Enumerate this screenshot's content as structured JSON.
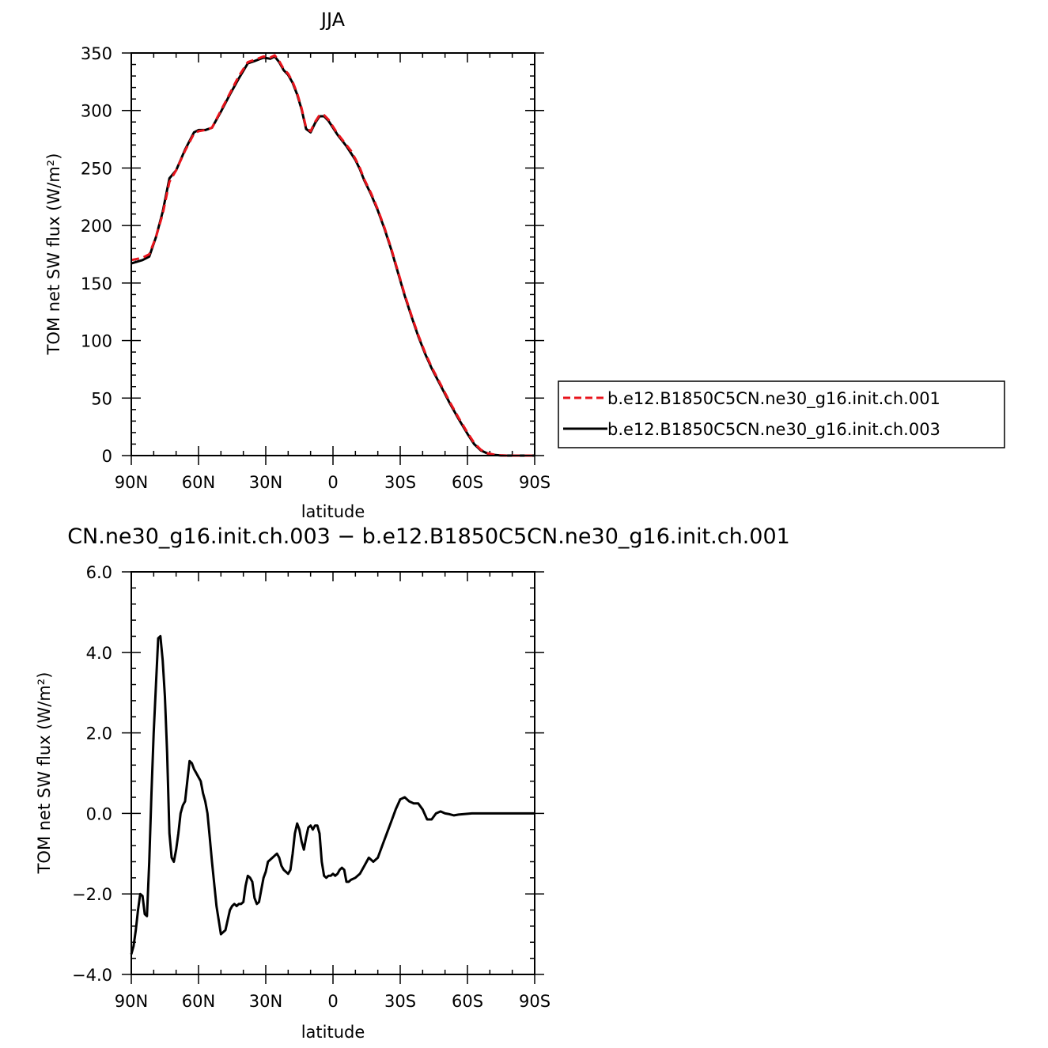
{
  "chart_data": [
    {
      "type": "line",
      "title": "JJA",
      "xlabel": "latitude",
      "ylabel": "TOM net SW flux (W/m²)",
      "xlim": [
        90,
        -90
      ],
      "ylim": [
        0,
        350
      ],
      "x_ticks": [
        90,
        60,
        30,
        0,
        -30,
        -60,
        -90
      ],
      "x_tick_labels": [
        "90N",
        "60N",
        "30N",
        "0",
        "30S",
        "60S",
        "90S"
      ],
      "y_ticks": [
        0,
        50,
        100,
        150,
        200,
        250,
        300,
        350
      ],
      "y_tick_labels": [
        "0",
        "50",
        "100",
        "150",
        "200",
        "250",
        "300",
        "350"
      ],
      "legend_position": "right",
      "series": [
        {
          "name": "b.e12.B1850C5CN.ne30_g16.init.ch.001",
          "color": "#e8141c",
          "dash": "dashed",
          "x": [
            90,
            85,
            82,
            79,
            76,
            73,
            70,
            66,
            62,
            60,
            57,
            54,
            50,
            46,
            42,
            38,
            35,
            31,
            28,
            26,
            24,
            22,
            20,
            18,
            16,
            14,
            12,
            10,
            8,
            6,
            4,
            2,
            0,
            -2,
            -4,
            -6,
            -8,
            -10,
            -12,
            -14,
            -17,
            -20,
            -23,
            -26,
            -29,
            -32,
            -35,
            -38,
            -41,
            -44,
            -48,
            -52,
            -56,
            -60,
            -63,
            -66,
            -69,
            -72,
            -75,
            -78,
            -82,
            -86,
            -90
          ],
          "y": [
            170,
            172,
            175,
            190,
            210,
            238,
            248,
            265,
            280,
            282,
            283,
            285,
            300,
            315,
            330,
            342,
            344,
            347,
            346,
            348,
            343,
            336,
            332,
            325,
            315,
            302,
            285,
            282,
            290,
            296,
            296,
            292,
            286,
            280,
            275,
            270,
            265,
            258,
            250,
            240,
            228,
            214,
            198,
            180,
            160,
            140,
            122,
            105,
            90,
            77,
            62,
            47,
            33,
            20,
            11,
            5,
            2,
            0.8,
            0.2,
            0,
            0,
            0,
            0
          ]
        },
        {
          "name": "b.e12.B1850C5CN.ne30_g16.init.ch.003",
          "color": "#000000",
          "dash": "solid",
          "x": [
            90,
            85,
            82,
            79,
            76,
            73,
            70,
            66,
            62,
            60,
            57,
            54,
            50,
            46,
            42,
            38,
            35,
            31,
            28,
            26,
            24,
            22,
            20,
            18,
            16,
            14,
            12,
            10,
            8,
            6,
            4,
            2,
            0,
            -2,
            -4,
            -6,
            -8,
            -10,
            -12,
            -14,
            -17,
            -20,
            -23,
            -26,
            -29,
            -32,
            -35,
            -38,
            -41,
            -44,
            -48,
            -52,
            -56,
            -60,
            -63,
            -66,
            -69,
            -72,
            -75,
            -78,
            -82,
            -86,
            -90
          ],
          "y": [
            167,
            170,
            173,
            190,
            212,
            241,
            248,
            266,
            281,
            283,
            283,
            285,
            299,
            314,
            328,
            341,
            343,
            346,
            345,
            347,
            342,
            335,
            331,
            324,
            314,
            301,
            284,
            281,
            289,
            295,
            295,
            291,
            285,
            279,
            274,
            269,
            263,
            257,
            249,
            239,
            227,
            213,
            197,
            179,
            159,
            139,
            121,
            104,
            89,
            76,
            61,
            46,
            32,
            19,
            10,
            4.5,
            1.8,
            0.6,
            0.1,
            0,
            0,
            0,
            0
          ]
        }
      ]
    },
    {
      "type": "line",
      "title": "CN.ne30_g16.init.ch.003 − b.e12.B1850C5CN.ne30_g16.init.ch.001",
      "xlabel": "latitude",
      "ylabel": "TOM net SW flux (W/m²)",
      "xlim": [
        90,
        -90
      ],
      "ylim": [
        -4.0,
        6.0
      ],
      "x_ticks": [
        90,
        60,
        30,
        0,
        -30,
        -60,
        -90
      ],
      "x_tick_labels": [
        "90N",
        "60N",
        "30N",
        "0",
        "30S",
        "60S",
        "90S"
      ],
      "y_ticks": [
        -4.0,
        -2.0,
        0.0,
        2.0,
        4.0,
        6.0
      ],
      "y_tick_labels": [
        "−4.0",
        "−2.0",
        "0.0",
        "2.0",
        "4.0",
        "6.0"
      ],
      "series": [
        {
          "color": "#000000",
          "x": [
            90,
            89,
            88,
            87,
            86,
            85,
            84,
            83,
            82,
            81,
            80,
            79,
            78,
            77,
            76,
            75,
            74,
            73,
            72,
            71,
            70,
            69,
            68,
            67,
            66,
            65,
            64,
            63,
            62,
            61,
            60,
            59,
            58,
            57,
            56,
            55,
            54,
            52,
            50,
            48,
            46,
            45,
            44,
            43,
            42,
            41,
            40,
            39,
            38,
            37,
            36,
            35,
            34,
            33,
            32,
            31,
            30,
            29,
            28,
            27,
            26,
            25,
            24,
            23,
            22,
            21,
            20,
            19,
            18,
            17,
            16,
            15,
            14,
            13,
            12,
            11,
            10,
            9,
            8,
            7,
            6,
            5,
            4,
            3,
            2,
            1,
            0,
            -1,
            -2,
            -3,
            -4,
            -5,
            -6,
            -7,
            -8,
            -10,
            -12,
            -14,
            -16,
            -18,
            -20,
            -22,
            -24,
            -26,
            -28,
            -30,
            -32,
            -34,
            -36,
            -38,
            -40,
            -42,
            -44,
            -46,
            -48,
            -50,
            -52,
            -54,
            -56,
            -58,
            -60,
            -62,
            -64,
            -66,
            -68,
            -70,
            -75,
            -80,
            -85,
            -90
          ],
          "y": [
            -3.5,
            -3.3,
            -2.9,
            -2.4,
            -2.0,
            -2.05,
            -2.5,
            -2.55,
            -1.2,
            0.5,
            2.0,
            3.2,
            4.35,
            4.4,
            3.8,
            2.9,
            1.5,
            -0.5,
            -1.1,
            -1.2,
            -0.9,
            -0.5,
            0.0,
            0.2,
            0.3,
            0.8,
            1.3,
            1.25,
            1.1,
            1.0,
            0.9,
            0.8,
            0.5,
            0.3,
            0.0,
            -0.6,
            -1.2,
            -2.3,
            -3.0,
            -2.9,
            -2.4,
            -2.3,
            -2.25,
            -2.3,
            -2.25,
            -2.25,
            -2.2,
            -1.8,
            -1.55,
            -1.6,
            -1.7,
            -2.1,
            -2.25,
            -2.2,
            -1.9,
            -1.6,
            -1.45,
            -1.2,
            -1.15,
            -1.1,
            -1.05,
            -1.0,
            -1.1,
            -1.3,
            -1.4,
            -1.45,
            -1.5,
            -1.4,
            -1.0,
            -0.5,
            -0.25,
            -0.4,
            -0.7,
            -0.9,
            -0.6,
            -0.35,
            -0.3,
            -0.4,
            -0.3,
            -0.3,
            -0.5,
            -1.2,
            -1.55,
            -1.6,
            -1.55,
            -1.55,
            -1.5,
            -1.55,
            -1.5,
            -1.4,
            -1.35,
            -1.4,
            -1.7,
            -1.7,
            -1.65,
            -1.6,
            -1.5,
            -1.3,
            -1.1,
            -1.2,
            -1.1,
            -0.8,
            -0.5,
            -0.2,
            0.1,
            0.35,
            0.4,
            0.3,
            0.25,
            0.25,
            0.1,
            -0.15,
            -0.15,
            0.0,
            0.05,
            0.0,
            -0.02,
            -0.05,
            -0.03,
            -0.02,
            -0.01,
            0.0,
            0.0,
            0.0,
            0.0,
            0.0,
            0.0,
            0.0,
            0.0,
            0.0
          ]
        }
      ]
    }
  ]
}
